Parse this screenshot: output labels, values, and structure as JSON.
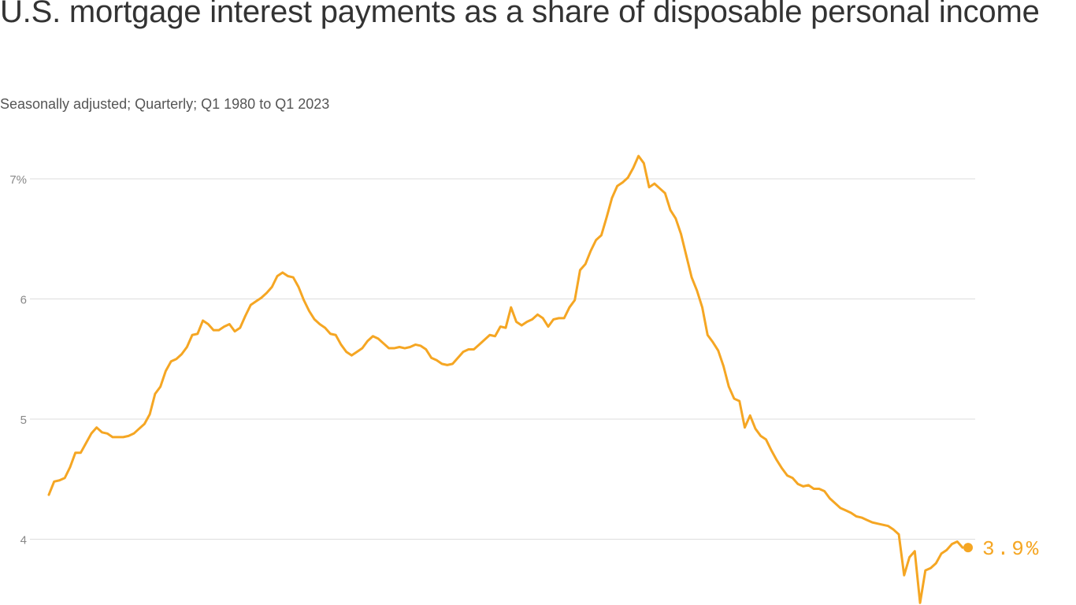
{
  "title": "U.S. mortgage interest payments as a share of disposable personal income",
  "subtitle": "Seasonally adjusted; Quarterly; Q1 1980 to Q1 2023",
  "colors": {
    "line": "#f5a623",
    "grid": "#dddddd",
    "tick": "#888888",
    "title": "#333333"
  },
  "chart_data": {
    "type": "line",
    "title": "U.S. mortgage interest payments as a share of disposable personal income",
    "subtitle": "Seasonally adjusted; Quarterly; Q1 1980 to Q1 2023",
    "xlabel": "",
    "ylabel": "",
    "x_range": [
      "Q1 1980",
      "Q1 2023"
    ],
    "ylim": [
      3.8,
      7.2
    ],
    "grid": true,
    "y_ticks": [
      {
        "value": 7,
        "label": "7%"
      },
      {
        "value": 6,
        "label": "6"
      },
      {
        "value": 5,
        "label": "5"
      },
      {
        "value": 4,
        "label": "4"
      }
    ],
    "series": [
      {
        "values": [
          4.37,
          4.48,
          4.49,
          4.51,
          4.6,
          4.72,
          4.72,
          4.8,
          4.88,
          4.93,
          4.89,
          4.88,
          4.85,
          4.85,
          4.85,
          4.86,
          4.88,
          4.92,
          4.96,
          5.04,
          5.21,
          5.27,
          5.4,
          5.48,
          5.5,
          5.54,
          5.6,
          5.7,
          5.71,
          5.82,
          5.79,
          5.74,
          5.74,
          5.77,
          5.79,
          5.73,
          5.76,
          5.86,
          5.95,
          5.98,
          6.01,
          6.05,
          6.1,
          6.19,
          6.22,
          6.19,
          6.18,
          6.1,
          5.99,
          5.9,
          5.83,
          5.79,
          5.76,
          5.71,
          5.7,
          5.62,
          5.56,
          5.53,
          5.56,
          5.59,
          5.65,
          5.69,
          5.67,
          5.63,
          5.59,
          5.59,
          5.6,
          5.59,
          5.6,
          5.62,
          5.61,
          5.58,
          5.51,
          5.49,
          5.46,
          5.45,
          5.46,
          5.51,
          5.56,
          5.58,
          5.58,
          5.62,
          5.66,
          5.7,
          5.69,
          5.77,
          5.76,
          5.93,
          5.81,
          5.78,
          5.81,
          5.83,
          5.87,
          5.84,
          5.77,
          5.83,
          5.84,
          5.84,
          5.93,
          5.99,
          6.24,
          6.29,
          6.4,
          6.49,
          6.53,
          6.68,
          6.84,
          6.94,
          6.97,
          7.01,
          7.09,
          7.19,
          7.13,
          6.93,
          6.96,
          6.92,
          6.88,
          6.74,
          6.67,
          6.54,
          6.36,
          6.18,
          6.07,
          5.93,
          5.7,
          5.64,
          5.57,
          5.44,
          5.27,
          5.17,
          5.15,
          4.93,
          5.03,
          4.92,
          4.86,
          4.83,
          4.74,
          4.66,
          4.59,
          4.53,
          4.51,
          4.46,
          4.44,
          4.45,
          4.42,
          4.42,
          4.4,
          4.34,
          4.3,
          4.26,
          4.24,
          4.22,
          4.19,
          4.18,
          4.16,
          4.14,
          4.13,
          4.12,
          4.11,
          4.08,
          4.04,
          3.7,
          3.85,
          3.9,
          3.47,
          3.74,
          3.76,
          3.8,
          3.88,
          3.91,
          3.96,
          3.98,
          3.93
        ]
      }
    ],
    "end_label": "3.9%"
  }
}
